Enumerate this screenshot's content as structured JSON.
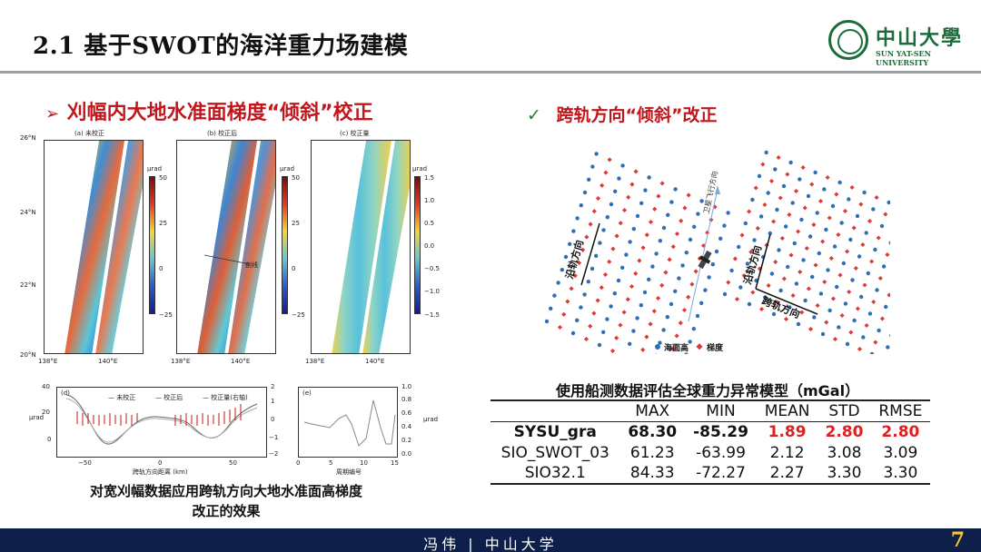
{
  "header": {
    "title": "2.1 基于SWOT的海洋重力场建模",
    "logo_cn": "中山大學",
    "logo_en": "SUN YAT-SEN UNIVERSITY"
  },
  "left": {
    "heading": "刈幅内大地水准面梯度“倾斜”校正",
    "maps": {
      "panels": [
        {
          "caption": "(a) 未校正"
        },
        {
          "caption": "(b) 校正后"
        },
        {
          "caption": "(c) 校正量"
        }
      ],
      "lat_labels": [
        "26°N",
        "24°N",
        "22°N",
        "20°N"
      ],
      "lon_labels": [
        "138°E",
        "140°E"
      ],
      "cbar1": {
        "unit": "μrad",
        "ticks": [
          "50",
          "25",
          "0",
          "−25"
        ]
      },
      "cbar2": {
        "unit": "μrad",
        "ticks": [
          "50",
          "25",
          "0",
          "−25"
        ]
      },
      "cbar3": {
        "unit": "μrad",
        "ticks": [
          "1.5",
          "1.0",
          "0.5",
          "0.0",
          "−0.5",
          "−1.0",
          "−1.5"
        ]
      },
      "profile_label": "剖线"
    },
    "profile": {
      "panel_label": "(d)",
      "legend": [
        "未校正",
        "校正后",
        "校正量(右轴)"
      ],
      "y_ticks": [
        "40",
        "20",
        "0"
      ],
      "y2_ticks": [
        "2",
        "1",
        "0",
        "−1",
        "−2"
      ],
      "x_ticks": [
        "−50",
        "0",
        "50"
      ],
      "ylabel": "μrad",
      "y2label": "μrad",
      "xlabel": "跨轨方向距离 (km)"
    },
    "period": {
      "panel_label": "(e)",
      "x_ticks": [
        "0",
        "5",
        "10",
        "15"
      ],
      "y_ticks": [
        "1.0",
        "0.8",
        "0.6",
        "0.4",
        "0.2",
        "0.0"
      ],
      "ylabel": "μrad",
      "xlabel": "周期编号"
    },
    "caption_line1": "对宽刈幅数据应用跨轨方向大地水准面高梯度",
    "caption_line2": "改正的效果"
  },
  "right": {
    "check": "✓",
    "heading": "跨轨方向“倾斜”改正",
    "diagram": {
      "along_track": "沿轨方向",
      "cross_track": "跨轨方向",
      "flight_dir": "卫星飞行方向",
      "legend_ssh": "海面高",
      "legend_grad": "梯度"
    },
    "table_title": "使用船测数据评估全球重力异常模型（mGal）",
    "table": {
      "columns": [
        "",
        "MAX",
        "MIN",
        "MEAN",
        "STD",
        "RMSE"
      ],
      "rows": [
        {
          "name": "SYSU_gra",
          "max": "68.30",
          "min": "-85.29",
          "mean": "1.89",
          "std": "2.80",
          "rmse": "2.80"
        },
        {
          "name": "SIO_SWOT_03",
          "max": "61.23",
          "min": "-63.99",
          "mean": "2.12",
          "std": "3.08",
          "rmse": "3.09"
        },
        {
          "name": "SIO32.1",
          "max": "84.33",
          "min": "-72.27",
          "mean": "2.27",
          "std": "3.30",
          "rmse": "3.30"
        }
      ]
    }
  },
  "footer": {
    "text": "冯伟 | 中山大学",
    "page": "7"
  },
  "colors": {
    "heading_red": "#c0161c",
    "brand_green": "#1c6b3b",
    "footer_navy": "#0e1f4a",
    "page_gold": "#ffc428",
    "ssh_dot": "#2c6fb7",
    "grad_dot": "#d93a3a"
  }
}
